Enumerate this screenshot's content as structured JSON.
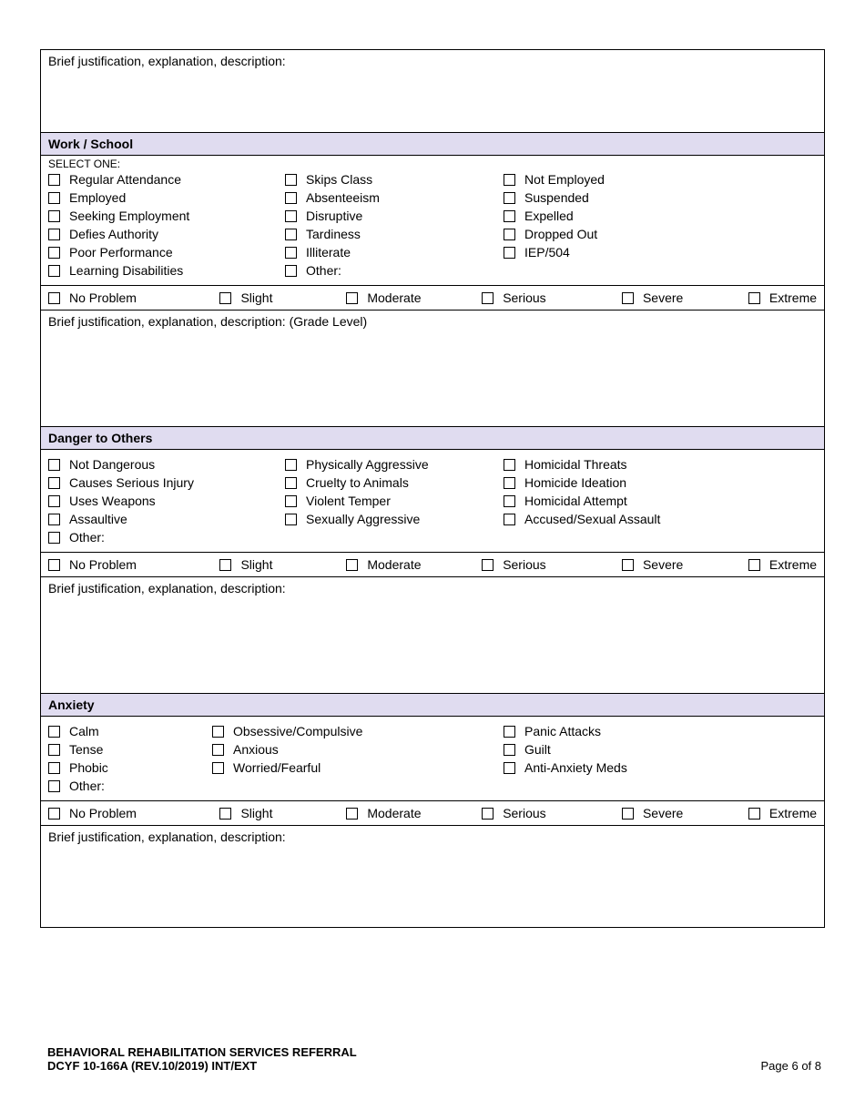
{
  "colors": {
    "section_header_bg": "#e0dcf0",
    "border": "#000000",
    "page_bg": "#ffffff",
    "text": "#000000"
  },
  "labels": {
    "brief_justification": "Brief justification, explanation, description:",
    "brief_justification_grade": "Brief justification, explanation, description:  (Grade Level)",
    "select_one": "SELECT ONE:"
  },
  "sections": {
    "work_school": {
      "title": "Work / School",
      "col1": [
        "Regular Attendance",
        "Employed",
        "Seeking Employment",
        "Defies Authority",
        "Poor Performance",
        "Learning Disabilities"
      ],
      "col2": [
        "Skips Class",
        "Absenteeism",
        "Disruptive",
        "Tardiness",
        "Illiterate",
        "Other:"
      ],
      "col3": [
        "Not Employed",
        "Suspended",
        "Expelled",
        "Dropped Out",
        "IEP/504"
      ]
    },
    "danger": {
      "title": "Danger to Others",
      "col1": [
        "Not Dangerous",
        "Causes Serious Injury",
        "Uses Weapons",
        "Assaultive",
        "Other:"
      ],
      "col2": [
        "Physically Aggressive",
        "Cruelty to Animals",
        "Violent Temper",
        "Sexually Aggressive"
      ],
      "col3": [
        "Homicidal Threats",
        "Homicide Ideation",
        "Homicidal Attempt",
        "Accused/Sexual Assault"
      ]
    },
    "anxiety": {
      "title": "Anxiety",
      "col1": [
        "Calm",
        "Tense",
        "Phobic",
        "Other:"
      ],
      "col2": [
        "Obsessive/Compulsive",
        "Anxious",
        "Worried/Fearful"
      ],
      "col3": [
        "Panic Attacks",
        "Guilt",
        "Anti-Anxiety Meds"
      ]
    }
  },
  "severity": [
    "No Problem",
    "Slight",
    "Moderate",
    "Serious",
    "Severe",
    "Extreme"
  ],
  "footer": {
    "title": "BEHAVIORAL REHABILITATION SERVICES REFERRAL",
    "form_id": "DCYF 10-166A (REV.10/2019) INT/EXT",
    "page": "Page 6 of 8"
  }
}
